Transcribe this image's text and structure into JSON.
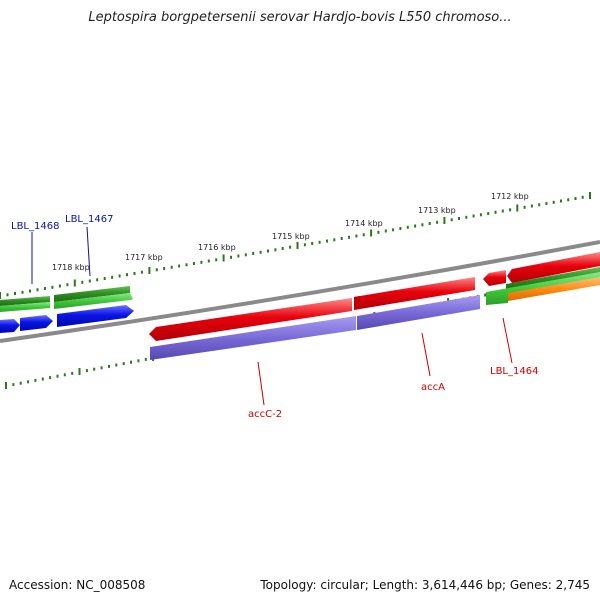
{
  "title": "Leptospira borgpetersenii serovar Hardjo-bovis L550 chromoso...",
  "footer": {
    "accession": "Accession: NC_008508",
    "topology": "Topology: circular; Length: 3,614,446 bp; Genes: 2,745"
  },
  "colors": {
    "backbone": "#8a8a8a",
    "tick": "#2a7a1a",
    "red_gene": "#e8000b",
    "blue_gene": "#0a14e6",
    "purple_gene": "#7a6ad8",
    "green_dark": "#2e8b22",
    "green_light": "#41c83c",
    "orange_gene": "#ff8c14",
    "label_red": "#cc0000",
    "label_blue": "#0a14a0"
  },
  "ticks": [
    {
      "label": "1712 kbp"
    },
    {
      "label": "1713 kbp"
    },
    {
      "label": "1714 kbp"
    },
    {
      "label": "1715 kbp"
    },
    {
      "label": "1716 kbp"
    },
    {
      "label": "1717 kbp"
    },
    {
      "label": "1718 kbp"
    }
  ],
  "gene_labels": {
    "lbl1468": "LBL_1468",
    "lbl1467": "LBL_1467",
    "accC2": "accC-2",
    "accA": "accA",
    "lbl1464": "LBL_1464"
  }
}
